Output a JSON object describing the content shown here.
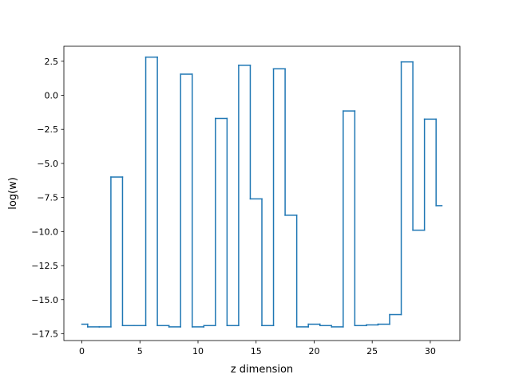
{
  "chart_data": {
    "type": "line",
    "style": "step",
    "xlabel": "z dimension",
    "ylabel": "log(w)",
    "xlim": [
      -1.55,
      32.55
    ],
    "ylim": [
      -18.0,
      3.6
    ],
    "x_ticks": [
      0,
      5,
      10,
      15,
      20,
      25,
      30
    ],
    "x_tick_labels": [
      "0",
      "5",
      "10",
      "15",
      "20",
      "25",
      "30"
    ],
    "y_ticks": [
      -17.5,
      -15.0,
      -12.5,
      -10.0,
      -7.5,
      -5.0,
      -2.5,
      0.0,
      2.5
    ],
    "y_tick_labels": [
      "−17.5",
      "−15.0",
      "−12.5",
      "−10.0",
      "−7.5",
      "−5.0",
      "−2.5",
      "0.0",
      "2.5"
    ],
    "grid": false,
    "series": [
      {
        "color": "#1f77b4",
        "x": [
          0,
          1,
          2,
          3,
          4,
          5,
          6,
          7,
          8,
          9,
          10,
          11,
          12,
          13,
          14,
          15,
          16,
          17,
          18,
          19,
          20,
          21,
          22,
          23,
          24,
          25,
          26,
          27,
          28,
          29,
          30,
          31
        ],
        "values": [
          -16.8,
          -17.0,
          -17.0,
          -6.0,
          -16.9,
          -16.9,
          2.8,
          -16.9,
          -17.0,
          1.55,
          -17.0,
          -16.9,
          -1.7,
          -16.9,
          2.2,
          -7.6,
          -16.9,
          1.95,
          -8.8,
          -17.0,
          -16.8,
          -16.9,
          -17.0,
          -1.15,
          -16.9,
          -16.85,
          -16.8,
          -16.1,
          2.45,
          -9.9,
          -1.75,
          -8.1
        ]
      }
    ]
  }
}
